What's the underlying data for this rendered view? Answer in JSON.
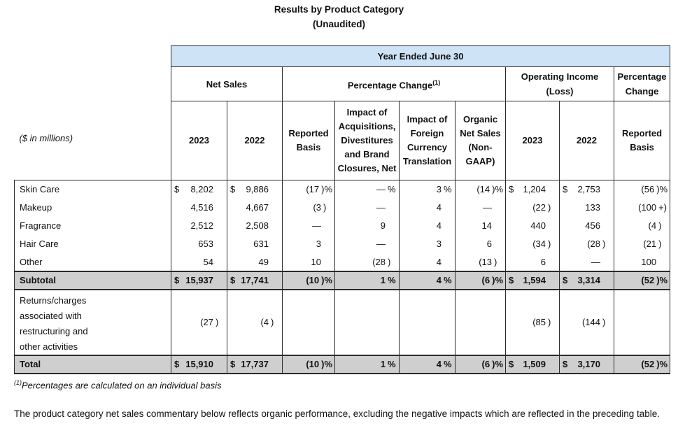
{
  "title": {
    "line1": "Results by Product Category",
    "line2": "(Unaudited)"
  },
  "colors": {
    "header_blue": "#cfe3f6",
    "row_gray": "#cfcfcf"
  },
  "table": {
    "year_header": "Year Ended June 30",
    "stub_label": "($ in millions)",
    "groups": [
      {
        "label": "Net Sales",
        "sup": "",
        "span": 2
      },
      {
        "label": "Percentage Change",
        "sup": "(1)",
        "span": 4
      },
      {
        "label": "Operating Income (Loss)",
        "sup": "",
        "span": 2
      },
      {
        "label": "Percentage Change",
        "sup": "",
        "span": 1
      }
    ],
    "columns": [
      "2023",
      "2022",
      "Reported Basis",
      "Impact of Acquisitions, Divestitures and Brand Closures, Net",
      "Impact of Foreign Currency Translation",
      "Organic Net Sales (Non-GAAP)",
      "2023",
      "2022",
      "Reported Basis"
    ],
    "rows": [
      {
        "label": "Skin Care",
        "style": "",
        "cells": [
          [
            "$",
            "8,202",
            ""
          ],
          [
            "$",
            "9,886",
            ""
          ],
          [
            "",
            "(17",
            ")%"
          ],
          [
            "",
            "—",
            "%"
          ],
          [
            "",
            "3",
            "%"
          ],
          [
            "",
            "(14",
            ")%"
          ],
          [
            "$",
            "1,204",
            ""
          ],
          [
            "$",
            "2,753",
            ""
          ],
          [
            "",
            "(56",
            ")%"
          ]
        ]
      },
      {
        "label": "Makeup",
        "style": "",
        "cells": [
          [
            "",
            "4,516",
            ""
          ],
          [
            "",
            "4,667",
            ""
          ],
          [
            "",
            "(3",
            ")"
          ],
          [
            "",
            "—",
            ""
          ],
          [
            "",
            "4",
            ""
          ],
          [
            "",
            "—",
            ""
          ],
          [
            "",
            "(22",
            ")"
          ],
          [
            "",
            "133",
            ""
          ],
          [
            "",
            "(100",
            "+)"
          ]
        ]
      },
      {
        "label": "Fragrance",
        "style": "",
        "cells": [
          [
            "",
            "2,512",
            ""
          ],
          [
            "",
            "2,508",
            ""
          ],
          [
            "",
            "—",
            ""
          ],
          [
            "",
            "9",
            ""
          ],
          [
            "",
            "4",
            ""
          ],
          [
            "",
            "14",
            ""
          ],
          [
            "",
            "440",
            ""
          ],
          [
            "",
            "456",
            ""
          ],
          [
            "",
            "(4",
            ")"
          ]
        ]
      },
      {
        "label": "Hair Care",
        "style": "",
        "cells": [
          [
            "",
            "653",
            ""
          ],
          [
            "",
            "631",
            ""
          ],
          [
            "",
            "3",
            ""
          ],
          [
            "",
            "—",
            ""
          ],
          [
            "",
            "3",
            ""
          ],
          [
            "",
            "6",
            ""
          ],
          [
            "",
            "(34",
            ")"
          ],
          [
            "",
            "(28",
            ")"
          ],
          [
            "",
            "(21",
            ")"
          ]
        ]
      },
      {
        "label": "Other",
        "style": "",
        "cells": [
          [
            "",
            "54",
            ""
          ],
          [
            "",
            "49",
            ""
          ],
          [
            "",
            "10",
            ""
          ],
          [
            "",
            "(28",
            ")"
          ],
          [
            "",
            "4",
            ""
          ],
          [
            "",
            "(13",
            ")"
          ],
          [
            "",
            "6",
            ""
          ],
          [
            "",
            "—",
            ""
          ],
          [
            "",
            "100",
            ""
          ]
        ]
      },
      {
        "label": "Subtotal",
        "style": "gray",
        "cells": [
          [
            "$",
            "15,937",
            ""
          ],
          [
            "$",
            "17,741",
            ""
          ],
          [
            "",
            "(10",
            ")%"
          ],
          [
            "",
            "1",
            "%"
          ],
          [
            "",
            "4",
            "%"
          ],
          [
            "",
            "(6",
            ")%"
          ],
          [
            "$",
            "1,594",
            ""
          ],
          [
            "$",
            "3,314",
            ""
          ],
          [
            "",
            "(52",
            ")%"
          ]
        ]
      },
      {
        "label": "Returns/charges\nassociated with\nrestructuring and\nother activities",
        "style": "tall",
        "cells": [
          [
            "",
            "(27",
            ")"
          ],
          [
            "",
            "(4",
            ")"
          ],
          [
            "",
            "",
            ""
          ],
          [
            "",
            "",
            ""
          ],
          [
            "",
            "",
            ""
          ],
          [
            "",
            "",
            ""
          ],
          [
            "",
            "(85",
            ")"
          ],
          [
            "",
            "(144",
            ")"
          ],
          [
            "",
            "",
            ""
          ]
        ]
      },
      {
        "label": "Total",
        "style": "gray",
        "cells": [
          [
            "$",
            "15,910",
            ""
          ],
          [
            "$",
            "17,737",
            ""
          ],
          [
            "",
            "(10",
            ")%"
          ],
          [
            "",
            "1",
            "%"
          ],
          [
            "",
            "4",
            "%"
          ],
          [
            "",
            "(6",
            ")%"
          ],
          [
            "$",
            "1,509",
            ""
          ],
          [
            "$",
            "3,170",
            ""
          ],
          [
            "",
            "(52",
            ")%"
          ]
        ]
      }
    ]
  },
  "footnote": {
    "marker": "(1)",
    "text": "Percentages are calculated on an individual basis"
  },
  "commentary": "The product category net sales commentary below reflects organic performance, excluding the negative impacts which are reflected in the preceding table."
}
